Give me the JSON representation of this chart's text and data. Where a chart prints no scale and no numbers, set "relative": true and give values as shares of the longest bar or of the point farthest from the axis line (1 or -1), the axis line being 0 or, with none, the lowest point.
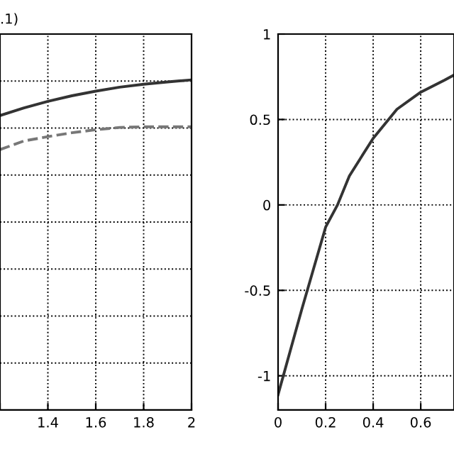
{
  "chart_data": [
    {
      "type": "line",
      "relative": true,
      "annotations": [
        ".1)"
      ],
      "xlim": [
        1.2,
        2
      ],
      "xticks": [
        {
          "value": 1.2,
          "label": null
        },
        1.4,
        1.6,
        1.8,
        2
      ],
      "grid": true,
      "legend": false,
      "series": [
        {
          "color": "#333333",
          "line_style": "solid",
          "x": [
            1.2,
            1.3,
            1.4,
            1.5,
            1.6,
            1.7,
            1.8,
            1.9,
            2.0
          ],
          "values": [
            0.892,
            0.915,
            0.935,
            0.952,
            0.966,
            0.978,
            0.987,
            0.994,
            1.0
          ]
        },
        {
          "color": "#777777",
          "line_style": "dashed",
          "x": [
            1.2,
            1.3,
            1.4,
            1.5,
            1.6,
            1.7,
            1.8,
            1.9,
            2.0
          ],
          "values": [
            0.789,
            0.815,
            0.828,
            0.84,
            0.849,
            0.856,
            0.858,
            0.858,
            0.858
          ]
        }
      ]
    },
    {
      "type": "line",
      "xlim": [
        0,
        0.74
      ],
      "ylim": [
        -1.2,
        1
      ],
      "xticks": [
        0,
        0.2,
        0.4,
        0.6
      ],
      "yticks": [
        -1,
        -0.5,
        0,
        0.5,
        1
      ],
      "grid": true,
      "legend": false,
      "series": [
        {
          "color": "#333333",
          "line_style": "solid",
          "x": [
            0,
            0.05,
            0.1,
            0.15,
            0.2,
            0.25,
            0.3,
            0.4,
            0.5,
            0.6,
            0.7,
            0.74
          ],
          "values": [
            -1.11,
            -0.86,
            -0.61,
            -0.37,
            -0.13,
            0.0,
            0.17,
            0.39,
            0.56,
            0.66,
            0.73,
            0.76
          ]
        }
      ]
    }
  ]
}
